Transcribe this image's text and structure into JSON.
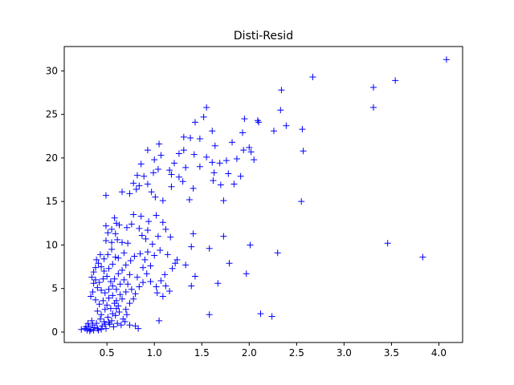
{
  "chart_data": {
    "type": "scatter",
    "title": "Disti-Resid",
    "xlabel": "",
    "ylabel": "",
    "xlim": [
      0.05,
      4.25
    ],
    "ylim": [
      -1.2,
      32.8
    ],
    "xticks": [
      0.5,
      1.0,
      1.5,
      2.0,
      2.5,
      3.0,
      3.5,
      4.0
    ],
    "xtick_labels": [
      "0.5",
      "1.0",
      "1.5",
      "2.0",
      "2.5",
      "3.0",
      "3.5",
      "4.0"
    ],
    "yticks": [
      0,
      5,
      10,
      15,
      20,
      25,
      30
    ],
    "ytick_labels": [
      "0",
      "5",
      "10",
      "15",
      "20",
      "25",
      "30"
    ],
    "marker": "+",
    "color": "#0000ff",
    "grid": false,
    "points": [
      [
        4.08,
        31.3
      ],
      [
        2.67,
        29.3
      ],
      [
        3.31,
        28.1
      ],
      [
        3.54,
        28.9
      ],
      [
        3.31,
        25.8
      ],
      [
        2.34,
        27.8
      ],
      [
        1.55,
        25.8
      ],
      [
        1.52,
        24.7
      ],
      [
        2.33,
        25.5
      ],
      [
        1.95,
        24.5
      ],
      [
        2.09,
        24.3
      ],
      [
        2.1,
        24.1
      ],
      [
        2.56,
        23.3
      ],
      [
        2.39,
        23.7
      ],
      [
        2.26,
        23.1
      ],
      [
        1.43,
        24.1
      ],
      [
        1.38,
        22.3
      ],
      [
        1.31,
        22.4
      ],
      [
        1.61,
        23.1
      ],
      [
        1.48,
        22.2
      ],
      [
        1.93,
        22.9
      ],
      [
        1.82,
        21.8
      ],
      [
        2.0,
        21.2
      ],
      [
        1.94,
        20.9
      ],
      [
        2.02,
        20.7
      ],
      [
        2.57,
        20.8
      ],
      [
        2.05,
        19.8
      ],
      [
        1.64,
        21.4
      ],
      [
        1.05,
        21.6
      ],
      [
        0.93,
        20.9
      ],
      [
        1.07,
        20.3
      ],
      [
        1.0,
        19.8
      ],
      [
        0.86,
        19.3
      ],
      [
        1.26,
        20.5
      ],
      [
        1.31,
        20.9
      ],
      [
        1.42,
        20.4
      ],
      [
        1.55,
        20.1
      ],
      [
        1.61,
        19.5
      ],
      [
        1.69,
        19.4
      ],
      [
        1.76,
        19.7
      ],
      [
        1.87,
        19.9
      ],
      [
        1.48,
        19.0
      ],
      [
        1.33,
        18.9
      ],
      [
        1.21,
        19.4
      ],
      [
        1.16,
        18.6
      ],
      [
        1.18,
        18.1
      ],
      [
        1.04,
        18.7
      ],
      [
        0.99,
        18.3
      ],
      [
        0.82,
        18.0
      ],
      [
        0.89,
        17.9
      ],
      [
        0.78,
        17.1
      ],
      [
        0.84,
        16.8
      ],
      [
        0.93,
        17.0
      ],
      [
        0.97,
        16.1
      ],
      [
        1.01,
        15.5
      ],
      [
        1.09,
        15.1
      ],
      [
        1.18,
        16.7
      ],
      [
        1.26,
        17.8
      ],
      [
        1.3,
        17.3
      ],
      [
        1.41,
        16.5
      ],
      [
        1.37,
        15.2
      ],
      [
        1.62,
        17.4
      ],
      [
        1.7,
        16.9
      ],
      [
        1.84,
        17.0
      ],
      [
        1.91,
        17.9
      ],
      [
        1.73,
        15.1
      ],
      [
        1.63,
        18.3
      ],
      [
        1.78,
        18.2
      ],
      [
        2.55,
        15.0
      ],
      [
        0.49,
        15.7
      ],
      [
        0.74,
        15.9
      ],
      [
        0.81,
        16.4
      ],
      [
        0.66,
        16.1
      ],
      [
        0.78,
        13.5
      ],
      [
        0.86,
        13.3
      ],
      [
        0.94,
        12.7
      ],
      [
        1.02,
        13.4
      ],
      [
        1.09,
        12.6
      ],
      [
        0.93,
        11.7
      ],
      [
        0.84,
        11.9
      ],
      [
        0.76,
        12.4
      ],
      [
        0.71,
        12.0
      ],
      [
        0.63,
        12.3
      ],
      [
        0.58,
        13.1
      ],
      [
        0.6,
        12.5
      ],
      [
        0.49,
        12.2
      ],
      [
        0.55,
        11.8
      ],
      [
        0.51,
        11.4
      ],
      [
        0.59,
        11.3
      ],
      [
        0.61,
        10.6
      ],
      [
        0.55,
        10.3
      ],
      [
        0.49,
        10.5
      ],
      [
        0.66,
        10.3
      ],
      [
        0.72,
        10.2
      ],
      [
        0.87,
        11.1
      ],
      [
        0.91,
        10.7
      ],
      [
        0.98,
        10.1
      ],
      [
        1.04,
        11.0
      ],
      [
        1.12,
        11.8
      ],
      [
        1.17,
        10.9
      ],
      [
        1.41,
        11.3
      ],
      [
        1.73,
        11.0
      ],
      [
        1.58,
        9.6
      ],
      [
        1.39,
        9.8
      ],
      [
        2.01,
        10.0
      ],
      [
        2.3,
        9.1
      ],
      [
        3.46,
        10.2
      ],
      [
        3.83,
        8.6
      ],
      [
        1.79,
        7.9
      ],
      [
        1.97,
        6.7
      ],
      [
        1.67,
        5.6
      ],
      [
        1.43,
        6.4
      ],
      [
        1.39,
        5.3
      ],
      [
        1.33,
        7.7
      ],
      [
        1.24,
        8.3
      ],
      [
        1.19,
        7.3
      ],
      [
        1.11,
        6.6
      ],
      [
        1.07,
        5.9
      ],
      [
        1.02,
        5.2
      ],
      [
        0.96,
        5.8
      ],
      [
        0.92,
        6.7
      ],
      [
        0.96,
        7.6
      ],
      [
        0.9,
        8.3
      ],
      [
        0.85,
        9.0
      ],
      [
        0.79,
        8.7
      ],
      [
        0.75,
        8.2
      ],
      [
        0.7,
        7.7
      ],
      [
        0.66,
        7.1
      ],
      [
        0.62,
        6.7
      ],
      [
        0.58,
        6.1
      ],
      [
        0.54,
        5.8
      ],
      [
        0.5,
        6.4
      ],
      [
        0.47,
        7.0
      ],
      [
        0.44,
        7.5
      ],
      [
        0.41,
        7.9
      ],
      [
        0.38,
        7.4
      ],
      [
        0.36,
        6.9
      ],
      [
        0.34,
        6.3
      ],
      [
        0.36,
        5.6
      ],
      [
        0.4,
        5.1
      ],
      [
        0.44,
        4.8
      ],
      [
        0.48,
        4.5
      ],
      [
        0.52,
        4.9
      ],
      [
        0.56,
        5.3
      ],
      [
        0.6,
        4.9
      ],
      [
        0.64,
        5.5
      ],
      [
        0.68,
        6.0
      ],
      [
        0.72,
        5.5
      ],
      [
        0.76,
        4.9
      ],
      [
        0.8,
        4.4
      ],
      [
        0.84,
        5.2
      ],
      [
        0.88,
        5.7
      ],
      [
        1.03,
        4.5
      ],
      [
        1.09,
        4.1
      ],
      [
        0.47,
        8.4
      ],
      [
        0.51,
        8.9
      ],
      [
        0.55,
        9.5
      ],
      [
        0.59,
        8.6
      ],
      [
        0.43,
        8.9
      ],
      [
        0.39,
        8.3
      ],
      [
        0.35,
        4.6
      ],
      [
        0.33,
        4.1
      ],
      [
        0.38,
        3.7
      ],
      [
        0.42,
        3.2
      ],
      [
        0.46,
        3.6
      ],
      [
        0.5,
        3.1
      ],
      [
        0.54,
        2.7
      ],
      [
        0.58,
        3.3
      ],
      [
        0.62,
        3.0
      ],
      [
        0.66,
        3.8
      ],
      [
        0.7,
        2.6
      ],
      [
        0.74,
        3.3
      ],
      [
        0.78,
        3.8
      ],
      [
        0.71,
        2.0
      ],
      [
        0.67,
        1.5
      ],
      [
        0.63,
        2.3
      ],
      [
        0.59,
        1.9
      ],
      [
        0.55,
        1.3
      ],
      [
        0.51,
        1.7
      ],
      [
        0.47,
        1.2
      ],
      [
        0.43,
        1.5
      ],
      [
        0.39,
        1.0
      ],
      [
        0.35,
        0.8
      ],
      [
        0.31,
        0.6
      ],
      [
        0.27,
        0.4
      ],
      [
        0.23,
        0.3
      ],
      [
        0.29,
        0.2
      ],
      [
        0.33,
        0.3
      ],
      [
        0.37,
        0.5
      ],
      [
        0.41,
        0.2
      ],
      [
        0.45,
        0.7
      ],
      [
        0.49,
        0.4
      ],
      [
        0.53,
        0.9
      ],
      [
        0.57,
        0.6
      ],
      [
        0.61,
        1.0
      ],
      [
        0.65,
        0.8
      ],
      [
        0.69,
        1.2
      ],
      [
        0.74,
        0.8
      ],
      [
        0.83,
        0.4
      ],
      [
        0.8,
        0.7
      ],
      [
        1.05,
        1.3
      ],
      [
        1.58,
        2.0
      ],
      [
        2.12,
        2.1
      ],
      [
        2.24,
        1.8
      ],
      [
        0.3,
        1.0
      ],
      [
        0.34,
        1.3
      ],
      [
        0.28,
        0.6
      ],
      [
        0.32,
        0.1
      ],
      [
        0.36,
        0.2
      ],
      [
        0.4,
        0.4
      ],
      [
        0.44,
        0.3
      ],
      [
        0.48,
        0.9
      ],
      [
        0.52,
        1.1
      ],
      [
        0.56,
        2.1
      ],
      [
        0.6,
        2.7
      ],
      [
        0.52,
        7.3
      ],
      [
        0.46,
        6.1
      ],
      [
        0.42,
        5.7
      ],
      [
        0.38,
        6.0
      ],
      [
        0.56,
        7.8
      ],
      [
        0.62,
        8.5
      ],
      [
        0.68,
        9.1
      ],
      [
        0.64,
        4.3
      ],
      [
        0.7,
        4.6
      ],
      [
        0.74,
        6.6
      ],
      [
        0.82,
        6.3
      ],
      [
        0.88,
        7.4
      ],
      [
        0.93,
        9.2
      ],
      [
        1.0,
        8.8
      ],
      [
        1.06,
        9.4
      ],
      [
        1.14,
        8.9
      ],
      [
        1.22,
        7.9
      ],
      [
        1.12,
        5.3
      ],
      [
        1.16,
        4.7
      ],
      [
        0.4,
        2.4
      ],
      [
        0.44,
        2.0
      ],
      [
        0.48,
        2.6
      ],
      [
        0.52,
        3.9
      ],
      [
        0.56,
        4.2
      ],
      [
        0.6,
        3.6
      ]
    ]
  }
}
